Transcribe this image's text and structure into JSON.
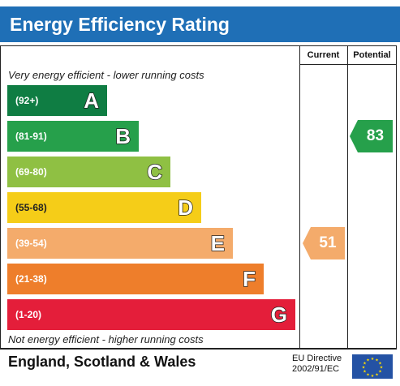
{
  "title": "Energy Efficiency Rating",
  "columns": {
    "current": "Current",
    "potential": "Potential"
  },
  "top_note": "Very energy efficient - lower running costs",
  "bottom_note": "Not energy efficient - higher running costs",
  "footer": {
    "region": "England, Scotland & Wales",
    "directive_line1": "EU Directive",
    "directive_line2": "2002/91/EC"
  },
  "chart_data": {
    "type": "bar",
    "bands": [
      {
        "letter": "A",
        "range": "(92+)",
        "color": "#0f7d43"
      },
      {
        "letter": "B",
        "range": "(81-91)",
        "color": "#26a04b"
      },
      {
        "letter": "C",
        "range": "(69-80)",
        "color": "#8fc043"
      },
      {
        "letter": "D",
        "range": "(55-68)",
        "color": "#f5cd18"
      },
      {
        "letter": "E",
        "range": "(39-54)",
        "color": "#f4ab6b"
      },
      {
        "letter": "F",
        "range": "(21-38)",
        "color": "#ee7e2b"
      },
      {
        "letter": "G",
        "range": "(1-20)",
        "color": "#e41e3a"
      }
    ],
    "current": {
      "value": 51,
      "band": "E",
      "color": "#f4ab6b"
    },
    "potential": {
      "value": 83,
      "band": "B",
      "color": "#26a04b"
    }
  }
}
